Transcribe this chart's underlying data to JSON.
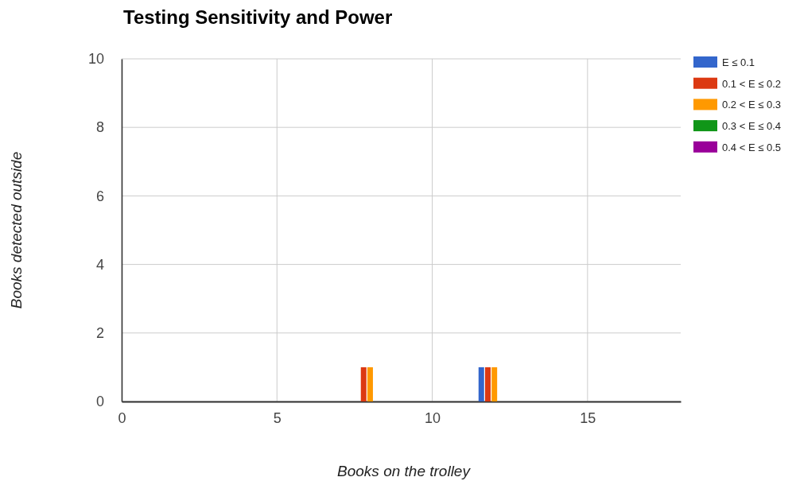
{
  "chart_data": {
    "type": "bar",
    "title": "Testing Sensitivity and Power",
    "xlabel": "Books on the trolley",
    "ylabel": "Books detected outside",
    "x": [
      2,
      4,
      6,
      8,
      10,
      12,
      14
    ],
    "series": [
      {
        "name": "E ≤ 0.1",
        "color": "#3366cc",
        "values": [
          0,
          0,
          0,
          0,
          0,
          1,
          0
        ]
      },
      {
        "name": "0.1  < E ≤ 0.2",
        "color": "#dc3912",
        "values": [
          0,
          0,
          0,
          1,
          0,
          1,
          0
        ]
      },
      {
        "name": "0.2  < E ≤ 0.3",
        "color": "#ff9900",
        "values": [
          0,
          0,
          0,
          1,
          0,
          1,
          0
        ]
      },
      {
        "name": "0.3 < E ≤ 0.4",
        "color": "#109618",
        "values": [
          0,
          0,
          0,
          0,
          0,
          0,
          0
        ]
      },
      {
        "name": "0.4  < E ≤ 0.5",
        "color": "#990099",
        "values": [
          0,
          0,
          0,
          0,
          0,
          0,
          0
        ]
      }
    ],
    "xlim": [
      0,
      18
    ],
    "xticks": [
      0,
      5,
      10,
      15
    ],
    "ylim": [
      0,
      10
    ],
    "yticks": [
      0,
      2,
      4,
      6,
      8,
      10
    ],
    "grid": true,
    "legend": "top right"
  }
}
